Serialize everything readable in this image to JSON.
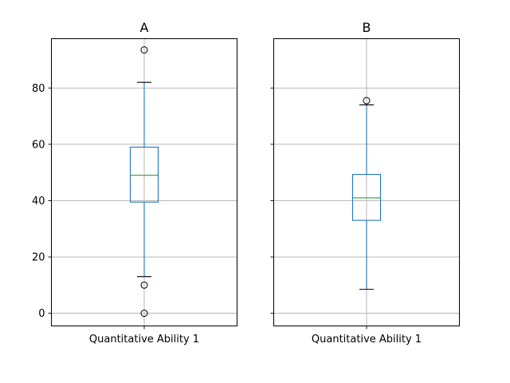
{
  "chart_data": [
    {
      "type": "box",
      "title": "A",
      "categories": [
        "Quantitative Ability 1"
      ],
      "ylim": [
        -4.5,
        97.5
      ],
      "yticks": [
        0,
        20,
        40,
        60,
        80
      ],
      "grid": true,
      "box": {
        "whislo": 13,
        "q1": 39.5,
        "median": 49,
        "q3": 59,
        "whishi": 82
      },
      "fliers": [
        93.5,
        10,
        0
      ]
    },
    {
      "type": "box",
      "title": "B",
      "categories": [
        "Quantitative Ability 1"
      ],
      "ylim": [
        -4.5,
        97.5
      ],
      "yticks": [
        0,
        20,
        40,
        60,
        80
      ],
      "grid": true,
      "box": {
        "whislo": 8.5,
        "q1": 33,
        "median": 41,
        "q3": 49.3,
        "whishi": 74
      },
      "fliers": [
        75.5
      ]
    }
  ],
  "colors": {
    "box": "#1f77b4",
    "median": "#2ca02c",
    "grid": "#b0b0b0",
    "axis": "#000000"
  }
}
